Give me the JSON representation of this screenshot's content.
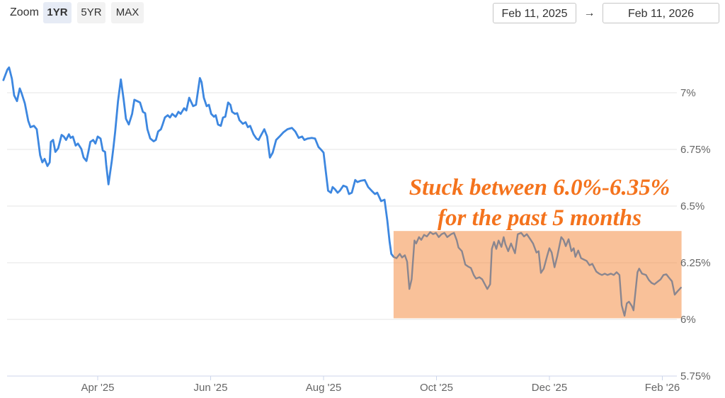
{
  "toolbar": {
    "zoom_label": "Zoom",
    "buttons": [
      {
        "label": "1YR",
        "selected": true
      },
      {
        "label": "5YR",
        "selected": false
      },
      {
        "label": "MAX",
        "selected": false
      }
    ],
    "date_from": "Feb 11, 2025",
    "date_to": "Feb 11, 2026",
    "arrow": "→"
  },
  "annotation": {
    "line1": "Stuck between 6.0%-6.35%",
    "line2": "for the past 5 months",
    "color": "#f4731d"
  },
  "chart_data": {
    "type": "line",
    "title": "",
    "xlabel": "",
    "ylabel": "",
    "x_unit": "months since Feb 1, 2025",
    "x_range_shown": [
      "Feb 11, 2025",
      "Feb 11, 2026"
    ],
    "grid": true,
    "legend": false,
    "style": {
      "grid_color": "#e6e6e6",
      "axis_color": "#ccd6eb",
      "label_color": "#666666"
    },
    "x_axis": {
      "ticks": [
        "Apr '25",
        "Jun '25",
        "Aug '25",
        "Oct '25",
        "Dec '25",
        "Feb '26"
      ],
      "tick_t_values": [
        2,
        4,
        6,
        8,
        10,
        12
      ]
    },
    "y_axis": {
      "ticks": [
        "7%",
        "6.75%",
        "6.5%",
        "6.25%",
        "6%",
        "5.75%"
      ],
      "tick_values": [
        7,
        6.75,
        6.5,
        6.25,
        6,
        5.75
      ],
      "min": 5.75,
      "max": 7.15
    },
    "highlight_band": {
      "t_start": 7.24,
      "t_end": 12.34,
      "v_top": 6.39,
      "v_bottom": 6.005,
      "fill": "rgba(243,132,52,0.5)",
      "meaning": "Stuck between 6.0%-6.35% for the past 5 months"
    },
    "series": [
      {
        "name": "rate-feb-to-mid-sep",
        "color": "#3d87e0",
        "width": 2.8,
        "points": [
          [
            0.33,
            7.056
          ],
          [
            0.4,
            7.102
          ],
          [
            0.43,
            7.112
          ],
          [
            0.48,
            7.062
          ],
          [
            0.52,
            6.988
          ],
          [
            0.57,
            6.963
          ],
          [
            0.62,
            7.019
          ],
          [
            0.65,
            7.0
          ],
          [
            0.71,
            6.953
          ],
          [
            0.77,
            6.876
          ],
          [
            0.81,
            6.848
          ],
          [
            0.87,
            6.854
          ],
          [
            0.92,
            6.839
          ],
          [
            0.98,
            6.724
          ],
          [
            1.02,
            6.693
          ],
          [
            1.06,
            6.708
          ],
          [
            1.11,
            6.677
          ],
          [
            1.15,
            6.693
          ],
          [
            1.17,
            6.783
          ],
          [
            1.21,
            6.792
          ],
          [
            1.25,
            6.739
          ],
          [
            1.3,
            6.755
          ],
          [
            1.36,
            6.814
          ],
          [
            1.4,
            6.807
          ],
          [
            1.44,
            6.792
          ],
          [
            1.49,
            6.817
          ],
          [
            1.52,
            6.801
          ],
          [
            1.56,
            6.807
          ],
          [
            1.61,
            6.767
          ],
          [
            1.65,
            6.776
          ],
          [
            1.71,
            6.752
          ],
          [
            1.75,
            6.714
          ],
          [
            1.8,
            6.699
          ],
          [
            1.84,
            6.745
          ],
          [
            1.87,
            6.783
          ],
          [
            1.92,
            6.792
          ],
          [
            1.96,
            6.776
          ],
          [
            2.0,
            6.807
          ],
          [
            2.05,
            6.798
          ],
          [
            2.09,
            6.745
          ],
          [
            2.13,
            6.739
          ],
          [
            2.15,
            6.683
          ],
          [
            2.19,
            6.596
          ],
          [
            2.25,
            6.699
          ],
          [
            2.28,
            6.761
          ],
          [
            2.31,
            6.829
          ],
          [
            2.36,
            6.963
          ],
          [
            2.41,
            7.059
          ],
          [
            2.46,
            6.969
          ],
          [
            2.5,
            6.885
          ],
          [
            2.55,
            6.86
          ],
          [
            2.61,
            6.907
          ],
          [
            2.65,
            6.969
          ],
          [
            2.7,
            6.963
          ],
          [
            2.75,
            6.957
          ],
          [
            2.8,
            6.916
          ],
          [
            2.84,
            6.91
          ],
          [
            2.88,
            6.839
          ],
          [
            2.93,
            6.798
          ],
          [
            2.99,
            6.786
          ],
          [
            3.03,
            6.792
          ],
          [
            3.07,
            6.829
          ],
          [
            3.12,
            6.839
          ],
          [
            3.15,
            6.86
          ],
          [
            3.19,
            6.891
          ],
          [
            3.24,
            6.901
          ],
          [
            3.28,
            6.891
          ],
          [
            3.32,
            6.907
          ],
          [
            3.38,
            6.894
          ],
          [
            3.43,
            6.916
          ],
          [
            3.47,
            6.907
          ],
          [
            3.53,
            6.932
          ],
          [
            3.57,
            6.922
          ],
          [
            3.62,
            6.978
          ],
          [
            3.66,
            6.957
          ],
          [
            3.69,
            6.941
          ],
          [
            3.74,
            6.947
          ],
          [
            3.81,
            7.065
          ],
          [
            3.84,
            7.047
          ],
          [
            3.88,
            6.978
          ],
          [
            3.93,
            6.941
          ],
          [
            3.97,
            6.947
          ],
          [
            4.01,
            6.907
          ],
          [
            4.06,
            6.894
          ],
          [
            4.09,
            6.901
          ],
          [
            4.13,
            6.86
          ],
          [
            4.18,
            6.854
          ],
          [
            4.22,
            6.891
          ],
          [
            4.26,
            6.894
          ],
          [
            4.31,
            6.957
          ],
          [
            4.35,
            6.947
          ],
          [
            4.38,
            6.916
          ],
          [
            4.43,
            6.907
          ],
          [
            4.47,
            6.91
          ],
          [
            4.51,
            6.879
          ],
          [
            4.57,
            6.863
          ],
          [
            4.62,
            6.87
          ],
          [
            4.66,
            6.848
          ],
          [
            4.7,
            6.854
          ],
          [
            4.76,
            6.817
          ],
          [
            4.81,
            6.798
          ],
          [
            4.85,
            6.792
          ],
          [
            4.88,
            6.807
          ],
          [
            4.95,
            6.839
          ],
          [
            5.0,
            6.807
          ],
          [
            5.05,
            6.714
          ],
          [
            5.1,
            6.736
          ],
          [
            5.16,
            6.792
          ],
          [
            5.22,
            6.807
          ],
          [
            5.29,
            6.826
          ],
          [
            5.36,
            6.839
          ],
          [
            5.44,
            6.845
          ],
          [
            5.5,
            6.829
          ],
          [
            5.56,
            6.801
          ],
          [
            5.62,
            6.807
          ],
          [
            5.66,
            6.792
          ],
          [
            5.72,
            6.798
          ],
          [
            5.79,
            6.801
          ],
          [
            5.85,
            6.798
          ],
          [
            5.91,
            6.761
          ],
          [
            5.97,
            6.745
          ],
          [
            6.0,
            6.736
          ],
          [
            6.04,
            6.652
          ],
          [
            6.08,
            6.568
          ],
          [
            6.13,
            6.559
          ],
          [
            6.16,
            6.584
          ],
          [
            6.2,
            6.575
          ],
          [
            6.25,
            6.559
          ],
          [
            6.29,
            6.568
          ],
          [
            6.35,
            6.59
          ],
          [
            6.41,
            6.584
          ],
          [
            6.45,
            6.553
          ],
          [
            6.5,
            6.559
          ],
          [
            6.56,
            6.615
          ],
          [
            6.6,
            6.606
          ],
          [
            6.66,
            6.612
          ],
          [
            6.73,
            6.615
          ],
          [
            6.79,
            6.584
          ],
          [
            6.85,
            6.568
          ],
          [
            6.91,
            6.553
          ],
          [
            6.95,
            6.559
          ],
          [
            7.02,
            6.522
          ],
          [
            7.08,
            6.528
          ],
          [
            7.13,
            6.435
          ],
          [
            7.17,
            6.342
          ],
          [
            7.2,
            6.289
          ],
          [
            7.24,
            6.276
          ]
        ]
      },
      {
        "name": "rate-mid-sep-to-feb-highlighted",
        "color": "#8a868f",
        "width": 2.4,
        "points": [
          [
            7.24,
            6.276
          ],
          [
            7.29,
            6.27
          ],
          [
            7.35,
            6.289
          ],
          [
            7.39,
            6.273
          ],
          [
            7.44,
            6.283
          ],
          [
            7.48,
            6.255
          ],
          [
            7.52,
            6.134
          ],
          [
            7.56,
            6.177
          ],
          [
            7.61,
            6.348
          ],
          [
            7.64,
            6.335
          ],
          [
            7.69,
            6.363
          ],
          [
            7.73,
            6.351
          ],
          [
            7.78,
            6.373
          ],
          [
            7.83,
            6.366
          ],
          [
            7.89,
            6.385
          ],
          [
            7.94,
            6.376
          ],
          [
            7.99,
            6.382
          ],
          [
            8.04,
            6.363
          ],
          [
            8.09,
            6.376
          ],
          [
            8.14,
            6.382
          ],
          [
            8.19,
            6.363
          ],
          [
            8.26,
            6.376
          ],
          [
            8.31,
            6.382
          ],
          [
            8.36,
            6.348
          ],
          [
            8.39,
            6.317
          ],
          [
            8.45,
            6.301
          ],
          [
            8.51,
            6.242
          ],
          [
            8.56,
            6.233
          ],
          [
            8.61,
            6.227
          ],
          [
            8.66,
            6.196
          ],
          [
            8.7,
            6.18
          ],
          [
            8.76,
            6.186
          ],
          [
            8.81,
            6.177
          ],
          [
            8.9,
            6.134
          ],
          [
            8.95,
            6.155
          ],
          [
            8.98,
            6.311
          ],
          [
            9.02,
            6.342
          ],
          [
            9.06,
            6.311
          ],
          [
            9.1,
            6.348
          ],
          [
            9.15,
            6.32
          ],
          [
            9.19,
            6.363
          ],
          [
            9.22,
            6.332
          ],
          [
            9.27,
            6.301
          ],
          [
            9.32,
            6.335
          ],
          [
            9.39,
            6.292
          ],
          [
            9.44,
            6.376
          ],
          [
            9.5,
            6.382
          ],
          [
            9.55,
            6.366
          ],
          [
            9.6,
            6.376
          ],
          [
            9.66,
            6.354
          ],
          [
            9.71,
            6.335
          ],
          [
            9.77,
            6.295
          ],
          [
            9.81,
            6.301
          ],
          [
            9.85,
            6.205
          ],
          [
            9.9,
            6.224
          ],
          [
            9.96,
            6.28
          ],
          [
            10.0,
            6.314
          ],
          [
            10.04,
            6.295
          ],
          [
            10.09,
            6.23
          ],
          [
            10.14,
            6.28
          ],
          [
            10.21,
            6.363
          ],
          [
            10.25,
            6.351
          ],
          [
            10.29,
            6.323
          ],
          [
            10.34,
            6.354
          ],
          [
            10.39,
            6.301
          ],
          [
            10.43,
            6.314
          ],
          [
            10.46,
            6.276
          ],
          [
            10.51,
            6.304
          ],
          [
            10.56,
            6.27
          ],
          [
            10.61,
            6.264
          ],
          [
            10.66,
            6.258
          ],
          [
            10.71,
            6.239
          ],
          [
            10.76,
            6.245
          ],
          [
            10.83,
            6.211
          ],
          [
            10.88,
            6.202
          ],
          [
            10.93,
            6.196
          ],
          [
            10.98,
            6.202
          ],
          [
            11.03,
            6.196
          ],
          [
            11.09,
            6.202
          ],
          [
            11.14,
            6.196
          ],
          [
            11.19,
            6.208
          ],
          [
            11.24,
            6.196
          ],
          [
            11.28,
            6.062
          ],
          [
            11.33,
            6.016
          ],
          [
            11.37,
            6.071
          ],
          [
            11.41,
            6.078
          ],
          [
            11.46,
            6.059
          ],
          [
            11.49,
            6.04
          ],
          [
            11.56,
            6.208
          ],
          [
            11.59,
            6.224
          ],
          [
            11.64,
            6.202
          ],
          [
            11.71,
            6.196
          ],
          [
            11.76,
            6.174
          ],
          [
            11.81,
            6.161
          ],
          [
            11.86,
            6.155
          ],
          [
            11.91,
            6.165
          ],
          [
            11.97,
            6.177
          ],
          [
            12.02,
            6.196
          ],
          [
            12.07,
            6.199
          ],
          [
            12.12,
            6.183
          ],
          [
            12.17,
            6.168
          ],
          [
            12.22,
            6.109
          ],
          [
            12.27,
            6.124
          ],
          [
            12.33,
            6.14
          ]
        ]
      }
    ]
  }
}
